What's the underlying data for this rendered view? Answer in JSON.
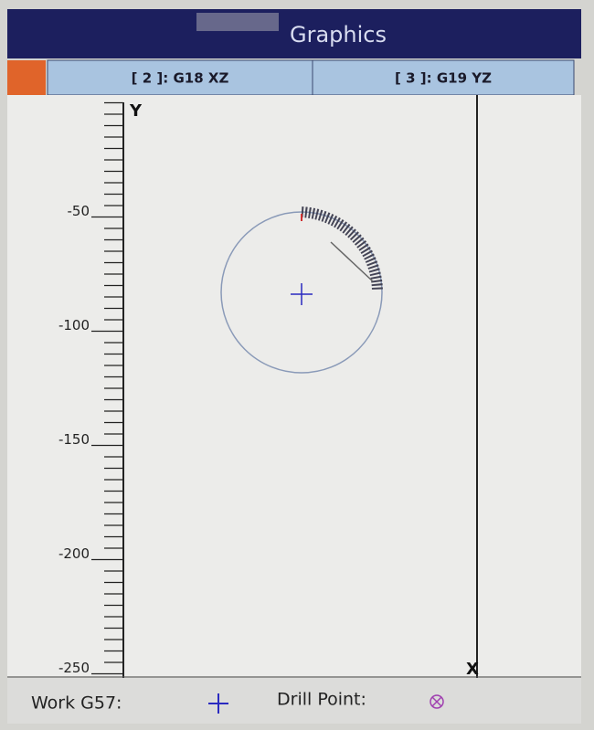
{
  "header": {
    "title": "Graphics"
  },
  "tabs": [
    "[ 2 ]: G18 XZ",
    "[ 3 ]: G19 YZ"
  ],
  "axes": {
    "y_label": "Y",
    "x_label": "X"
  },
  "ruler_labels": [
    "-50",
    "-100",
    "-150",
    "-200",
    "-250"
  ],
  "footer": {
    "work_offset": "Work G57:",
    "drill_point": "Drill Point:"
  }
}
